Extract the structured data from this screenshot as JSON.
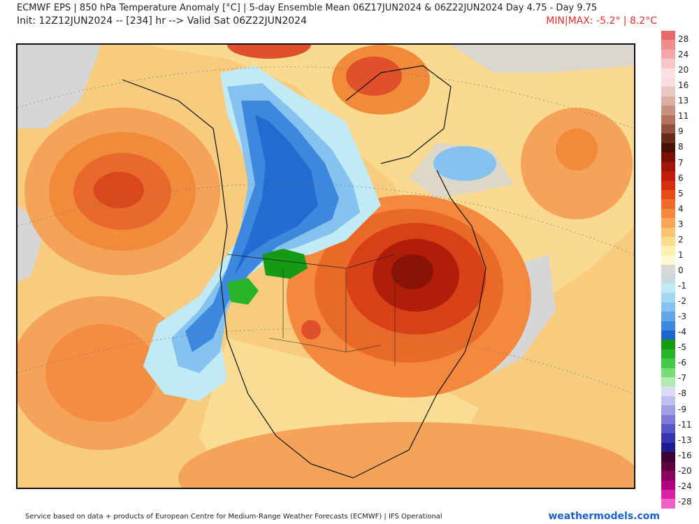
{
  "header": {
    "title": "ECMWF EPS | 850 hPa Temperature Anomaly [°C] | 5-day Ensemble Mean 06Z17JUN2024 & 06Z22JUN2024   Day 4.75 - Day 9.75",
    "subtitle": "Init: 12Z12JUN2024 -- [234] hr --> Valid Sat 06Z22JUN2024",
    "minmax": "MIN|MAX: -5.2° | 8.2°C"
  },
  "colorbar": {
    "labels": [
      "28",
      "24",
      "20",
      "16",
      "13",
      "11",
      "9",
      "8",
      "7",
      "6",
      "5",
      "4",
      "3",
      "2",
      "1",
      "0",
      "-1",
      "-2",
      "-3",
      "-4",
      "-5",
      "-6",
      "-7",
      "-8",
      "-9",
      "-11",
      "-13",
      "-16",
      "-20",
      "-24",
      "-28"
    ],
    "colors": [
      "#e86a6a",
      "#f08c8c",
      "#f4a8a8",
      "#f8c8c8",
      "#fbe2e2",
      "#f5dede",
      "#e7c7c0",
      "#d9aea3",
      "#c99081",
      "#b47160",
      "#8f5040",
      "#6a2a1a",
      "#4a1005",
      "#7a1006",
      "#a01508",
      "#c01e0a",
      "#d8300e",
      "#e84a18",
      "#f06a2a",
      "#f4893e",
      "#f7a757",
      "#f9c370",
      "#fbdb8c",
      "#fdf0b0",
      "#fefad0",
      "#d8d8d8",
      "#c8d8dc",
      "#bfeaf6",
      "#a6d8f5",
      "#86c2f0",
      "#62a6ea",
      "#3d87df",
      "#1d66cf",
      "#149a14",
      "#28b428",
      "#48c848",
      "#78dc78",
      "#b0ecb0",
      "#dcdcf6",
      "#c0c0ee",
      "#9f9fe2",
      "#7c7cd6",
      "#5858c6",
      "#3636b0",
      "#1c1c90",
      "#3c0030",
      "#600040",
      "#8a0060",
      "#b00080",
      "#d820a8",
      "#f060c8"
    ]
  },
  "footer": {
    "left": "Service based on data + products of European Centre for Medium-Range Weather Forecasts (ECMWF) | IFS Operational",
    "right": "weathermodels.com"
  }
}
